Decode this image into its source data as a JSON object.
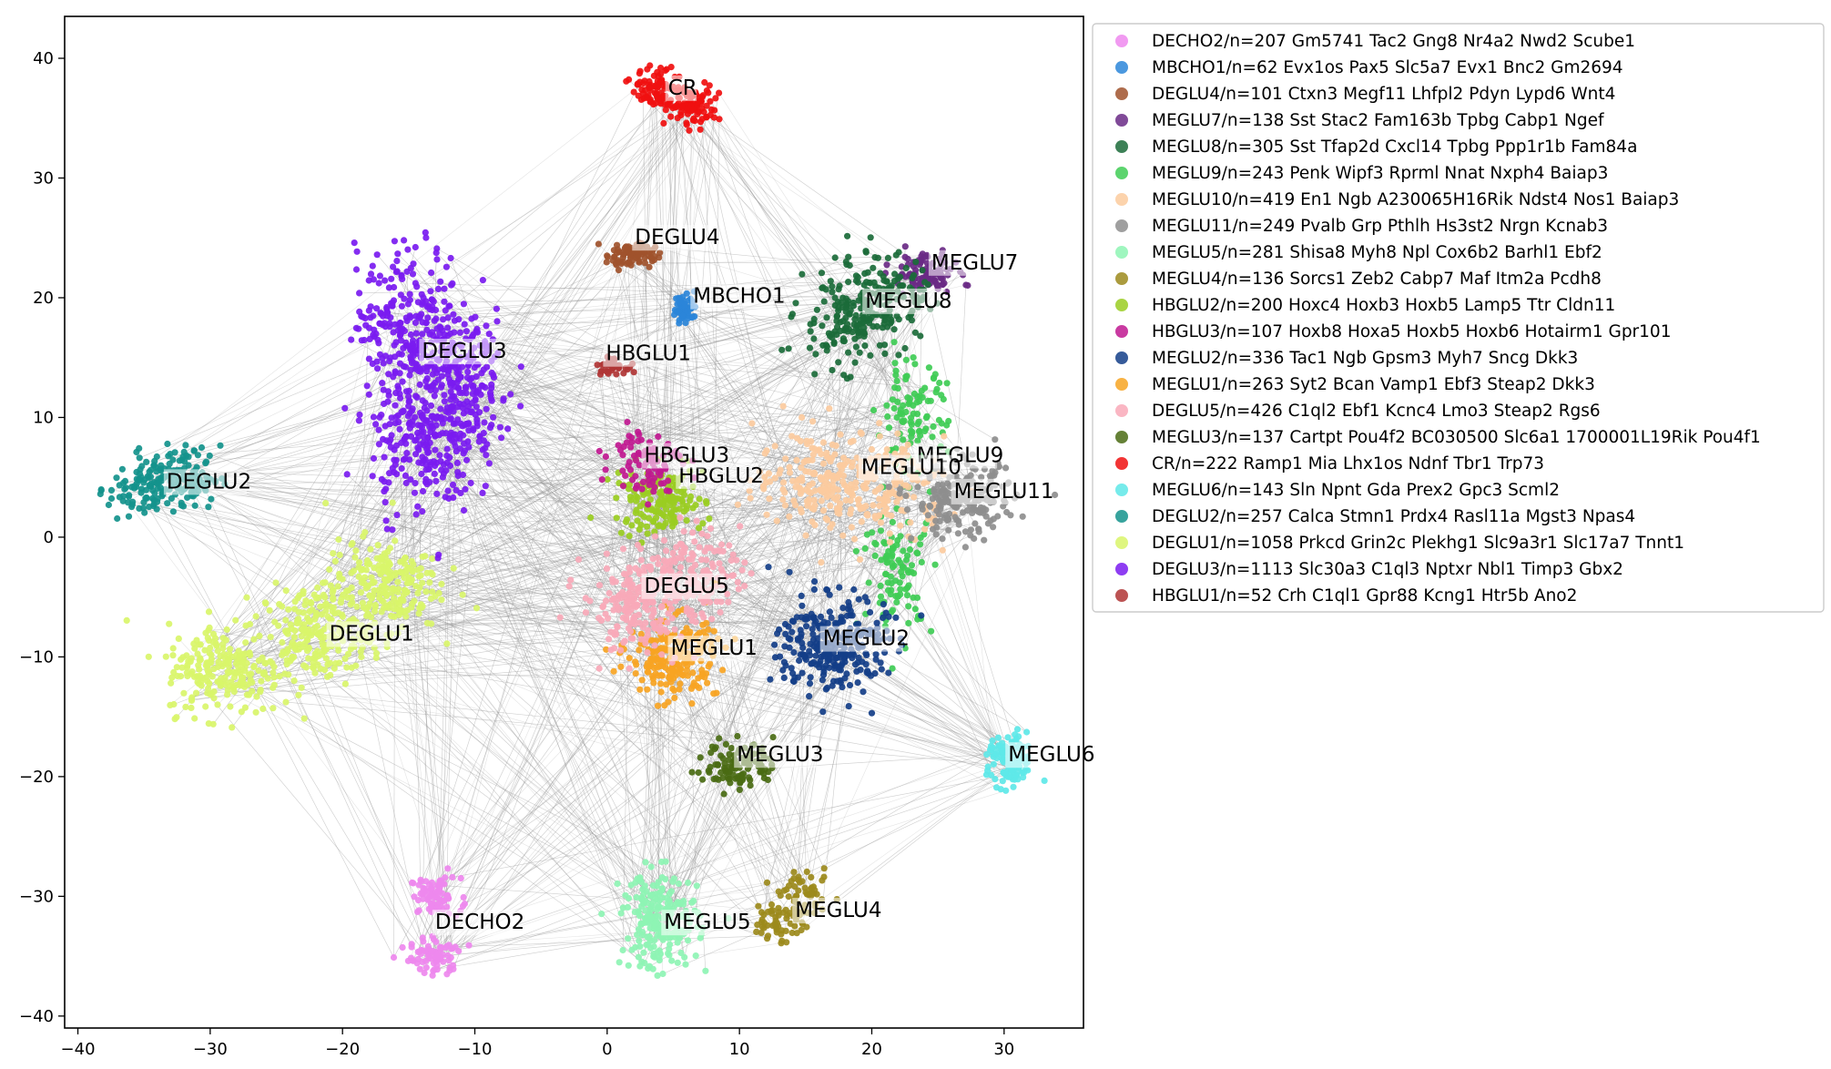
{
  "chart_data": {
    "type": "scatter",
    "title": "",
    "xlabel": "",
    "ylabel": "",
    "xlim": [
      -41,
      36
    ],
    "ylim": [
      -41,
      43.5
    ],
    "xticks": [
      -40,
      -30,
      -20,
      -10,
      0,
      10,
      20,
      30
    ],
    "yticks": [
      -40,
      -30,
      -20,
      -10,
      0,
      10,
      20,
      30,
      40
    ],
    "grid": false,
    "legend_position": "outside-right",
    "edge_color": "#9a9a9a",
    "series": [
      {
        "name": "DECHO2/n=207 Gm5741 Tac2 Gng8 Nr4a2 Nwd2 Scube1",
        "label": "DECHO2",
        "color": "#EE88EE",
        "centers": [
          [
            -13,
            -30
          ],
          [
            -13,
            -35
          ]
        ],
        "spread": [
          1.6,
          1.3
        ],
        "count": 150,
        "label_pos": [
          -13,
          -32.5
        ]
      },
      {
        "name": "MBCHO1/n=62 Evx1os Pax5 Slc5a7 Evx1 Bnc2 Gm2694",
        "label": "MBCHO1",
        "color": "#2B86D9",
        "centers": [
          [
            5.9,
            19.2
          ]
        ],
        "spread": [
          0.8,
          1.1
        ],
        "count": 55,
        "label_pos": [
          6.5,
          19.8
        ]
      },
      {
        "name": "DEGLU4/n=101 Ctxn3 Megf11 Lhfpl2 Pdyn Lypd6 Wnt4",
        "label": "DEGLU4",
        "color": "#A0522D",
        "centers": [
          [
            1.8,
            23.6
          ]
        ],
        "spread": [
          1.5,
          0.9
        ],
        "count": 80,
        "label_pos": [
          2.1,
          24.7
        ]
      },
      {
        "name": "MEGLU7/n=138 Sst Stac2 Fam163b Tpbg Cabp1 Ngef",
        "label": "MEGLU7",
        "color": "#6A2A86",
        "centers": [
          [
            24,
            22
          ]
        ],
        "spread": [
          2,
          1.4
        ],
        "count": 100,
        "label_pos": [
          24.5,
          22.6
        ]
      },
      {
        "name": "MEGLU8/n=305 Sst Tfap2d Cxcl14 Tpbg Ppp1r1b Fam84a",
        "label": "MEGLU8",
        "color": "#1B6B3A",
        "centers": [
          [
            18,
            18
          ],
          [
            21,
            20
          ]
        ],
        "spread": [
          3.2,
          3
        ],
        "count": 260,
        "label_pos": [
          19.5,
          19.4
        ]
      },
      {
        "name": "MEGLU9/n=243 Penk Wipf3 Rprml Nnat Nxph4 Baiap3",
        "label": "MEGLU9",
        "color": "#3FCC55",
        "centers": [
          [
            23,
            10
          ],
          [
            22,
            -3
          ]
        ],
        "spread": [
          2.2,
          4
        ],
        "count": 200,
        "label_pos": [
          23.4,
          6.5
        ]
      },
      {
        "name": "MEGLU10/n=419 En1 Ngb A230065H16Rik Ndst4 Nos1 Baiap3",
        "label": "MEGLU10",
        "color": "#FCCB9E",
        "centers": [
          [
            16,
            5
          ],
          [
            21,
            4
          ]
        ],
        "spread": [
          4,
          3.5
        ],
        "count": 320,
        "label_pos": [
          19.2,
          5.5
        ]
      },
      {
        "name": "MEGLU11/n=249 Pvalb Grp Pthlh Hs3st2 Nrgn Kcnab3",
        "label": "MEGLU11",
        "color": "#8E8E8E",
        "centers": [
          [
            27,
            3
          ]
        ],
        "spread": [
          3.2,
          2.6
        ],
        "count": 200,
        "label_pos": [
          26.2,
          3.5
        ]
      },
      {
        "name": "MEGLU5/n=281 Shisa8 Myh8 Npl Cox6b2 Barhl1 Ebf2",
        "label": "MEGLU5",
        "color": "#8EF4B4",
        "centers": [
          [
            4,
            -32
          ]
        ],
        "spread": [
          2.4,
          3.4
        ],
        "count": 220,
        "label_pos": [
          4.3,
          -32.5
        ]
      },
      {
        "name": "MEGLU4/n=136 Sorcs1 Zeb2 Cabp7 Maf Itm2a Pcdh8",
        "label": "MEGLU4",
        "color": "#9C8A1C",
        "centers": [
          [
            13,
            -32
          ],
          [
            15,
            -30
          ]
        ],
        "spread": [
          1.6,
          1.6
        ],
        "count": 110,
        "label_pos": [
          14.2,
          -31.5
        ]
      },
      {
        "name": "HBGLU2/n=200 Hoxc4 Hoxb3 Hoxb5 Lamp5 Ttr Cldn11",
        "label": "HBGLU2",
        "color": "#9ACD22",
        "centers": [
          [
            4,
            3
          ]
        ],
        "spread": [
          2.8,
          2.4
        ],
        "count": 160,
        "label_pos": [
          5.4,
          4.8
        ]
      },
      {
        "name": "HBGLU3/n=107 Hoxb8 Hoxa5 Hoxb5 Hoxb6 Hotairm1 Gpr101",
        "label": "HBGLU3",
        "color": "#C01890",
        "centers": [
          [
            3,
            6.5
          ]
        ],
        "spread": [
          2.2,
          2.2
        ],
        "count": 90,
        "label_pos": [
          2.8,
          6.5
        ]
      },
      {
        "name": "MEGLU2/n=336 Tac1 Ngb Gpsm3 Myh7 Sncg Dkk3",
        "label": "MEGLU2",
        "color": "#133E88",
        "centers": [
          [
            17,
            -9
          ]
        ],
        "spread": [
          3.4,
          3.4
        ],
        "count": 280,
        "label_pos": [
          16.3,
          -8.8
        ]
      },
      {
        "name": "MEGLU1/n=263 Syt2 Bcan Vamp1 Ebf3 Steap2 Dkk3",
        "label": "MEGLU1",
        "color": "#F7A423",
        "centers": [
          [
            5,
            -10
          ]
        ],
        "spread": [
          2.8,
          2.8
        ],
        "count": 220,
        "label_pos": [
          4.8,
          -9.6
        ]
      },
      {
        "name": "DEGLU5/n=426 C1ql2 Ebf1 Kcnc4 Lmo3 Steap2 Rgs6",
        "label": "DEGLU5",
        "color": "#F9A9B8",
        "centers": [
          [
            2,
            -6
          ],
          [
            6,
            -3
          ]
        ],
        "spread": [
          3.3,
          3
        ],
        "count": 340,
        "label_pos": [
          2.8,
          -4.4
        ]
      },
      {
        "name": "MEGLU3/n=137 Cartpt Pou4f2 BC030500 Slc6a1 1700001L19Rik Pou4f1",
        "label": "MEGLU3",
        "color": "#4A6B14",
        "centers": [
          [
            10,
            -19
          ]
        ],
        "spread": [
          2.2,
          1.6
        ],
        "count": 110,
        "label_pos": [
          9.8,
          -18.5
        ]
      },
      {
        "name": "CR/n=222 Ramp1 Mia Lhx1os Ndnf Tbr1 Trp73",
        "label": "CR",
        "color": "#F01010",
        "centers": [
          [
            4,
            37.5
          ],
          [
            6.5,
            36
          ]
        ],
        "spread": [
          1.7,
          1.4
        ],
        "count": 180,
        "label_pos": [
          4.6,
          37.2
        ]
      },
      {
        "name": "MEGLU6/n=143 Sln Npnt Gda Prex2 Gpc3 Scml2",
        "label": "MEGLU6",
        "color": "#5EE8E8",
        "centers": [
          [
            30.5,
            -18.8
          ]
        ],
        "spread": [
          1.4,
          1.9
        ],
        "count": 120,
        "label_pos": [
          30.3,
          -18.5
        ]
      },
      {
        "name": "DEGLU2/n=257 Calca Stmn1 Prdx4 Rasl11a Mgst3 Npas4",
        "label": "DEGLU2",
        "color": "#14938C",
        "centers": [
          [
            -35,
            4
          ],
          [
            -32,
            5
          ]
        ],
        "spread": [
          2.3,
          2.2
        ],
        "count": 200,
        "label_pos": [
          -33.3,
          4.3
        ]
      },
      {
        "name": "DEGLU1/n=1058 Prkcd Grin2c Plekhg1 Slc9a3r1 Slc17a7 Tnnt1",
        "label": "DEGLU1",
        "color": "#D9F56A",
        "centers": [
          [
            -29,
            -11
          ],
          [
            -22,
            -8
          ],
          [
            -17,
            -4
          ]
        ],
        "spread": [
          3.6,
          3.2
        ],
        "count": 650,
        "label_pos": [
          -21,
          -8.4
        ]
      },
      {
        "name": "DEGLU3/n=1113 Slc30a3 C1ql3 Nptxr Nbl1 Timp3 Gbx2",
        "label": "DEGLU3",
        "color": "#7A1BF0",
        "centers": [
          [
            -15,
            18
          ],
          [
            -14,
            8
          ],
          [
            -11,
            13
          ]
        ],
        "spread": [
          3.3,
          5.2
        ],
        "count": 700,
        "label_pos": [
          -14,
          15.2
        ]
      },
      {
        "name": "HBGLU1/n=52 Crh C1ql1 Gpr88 Kcng1 Htr5b Ano2",
        "label": "HBGLU1",
        "color": "#B03535",
        "centers": [
          [
            0.3,
            14.3
          ]
        ],
        "spread": [
          0.9,
          0.5
        ],
        "count": 40,
        "label_pos": [
          -0.1,
          15
        ]
      }
    ]
  }
}
